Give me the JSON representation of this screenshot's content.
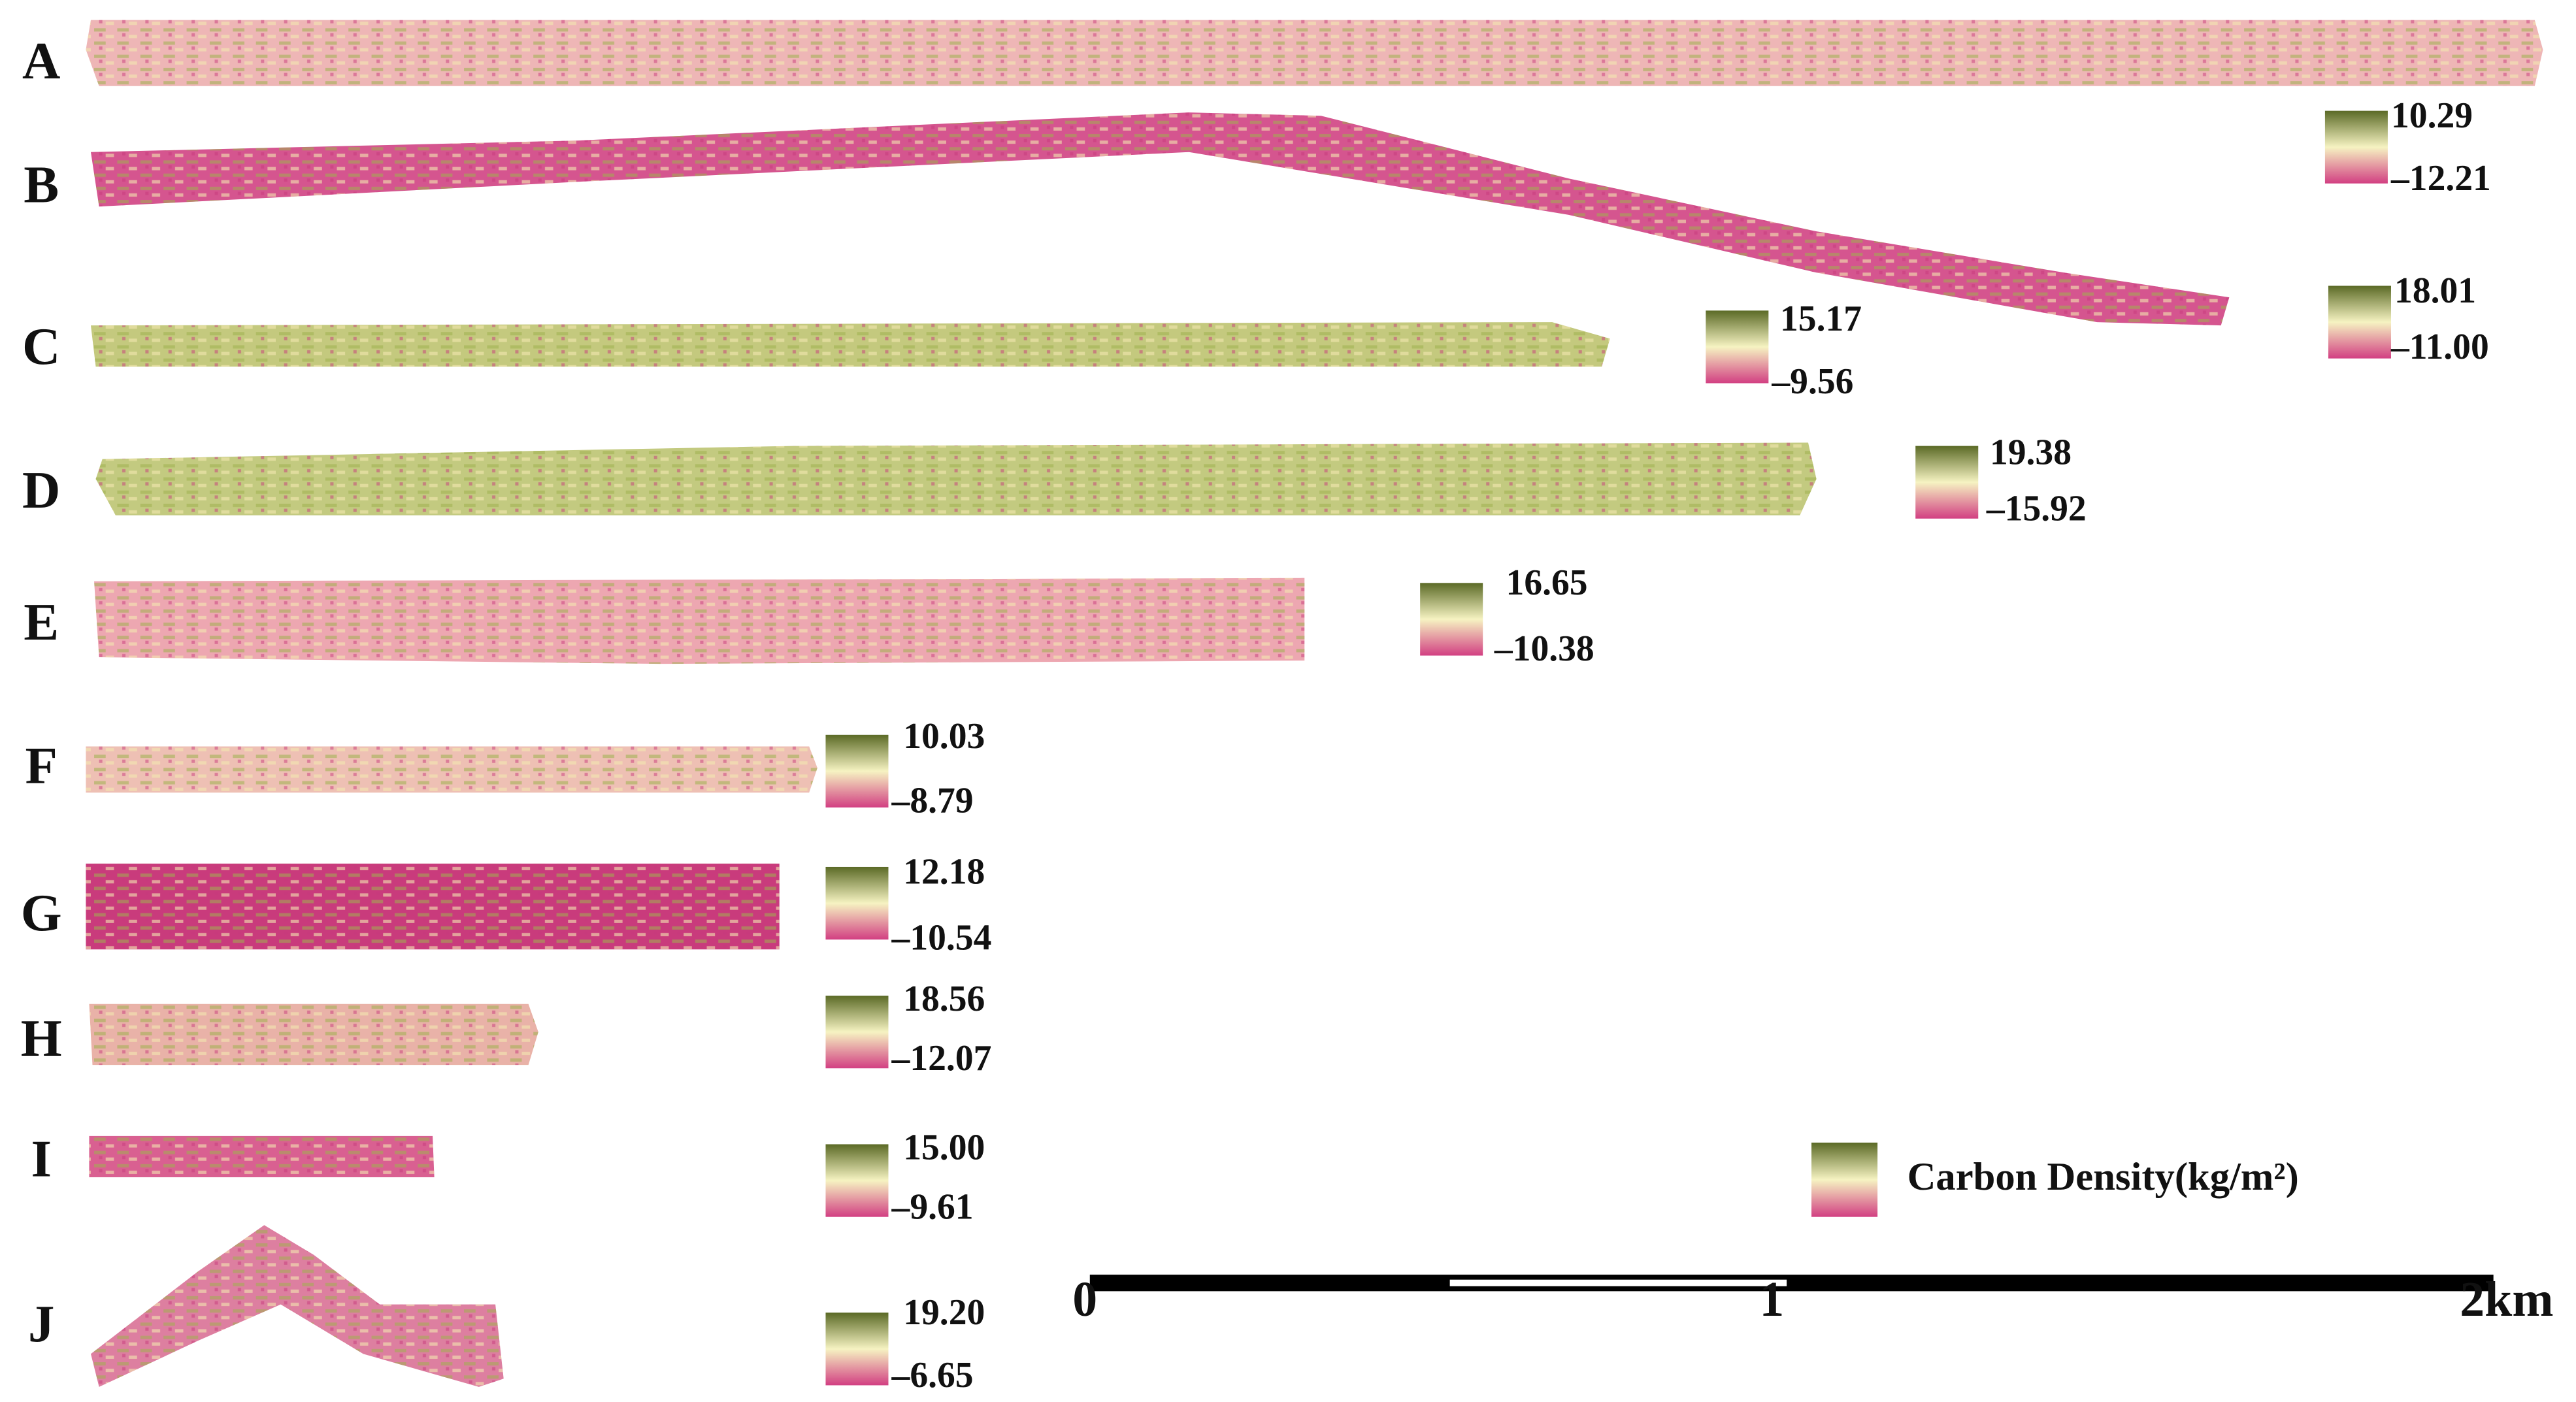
{
  "panels": [
    {
      "label": "A",
      "max": "10.29",
      "min": "–12.21"
    },
    {
      "label": "B",
      "max": "18.01",
      "min": "–11.00"
    },
    {
      "label": "C",
      "max": "15.17",
      "min": "–9.56"
    },
    {
      "label": "D",
      "max": "19.38",
      "min": "–15.92"
    },
    {
      "label": "E",
      "max": "16.65",
      "min": "–10.38"
    },
    {
      "label": "F",
      "max": "10.03",
      "min": "–8.79"
    },
    {
      "label": "G",
      "max": "12.18",
      "min": "–10.54"
    },
    {
      "label": "H",
      "max": "18.56",
      "min": "–12.07"
    },
    {
      "label": "I",
      "max": "15.00",
      "min": "–9.61"
    },
    {
      "label": "J",
      "max": "19.20",
      "min": "–6.65"
    }
  ],
  "legend": {
    "title": "Carbon Density(kg/m²)"
  },
  "scale_bar": {
    "labels": [
      "0",
      "1",
      "2km"
    ]
  }
}
